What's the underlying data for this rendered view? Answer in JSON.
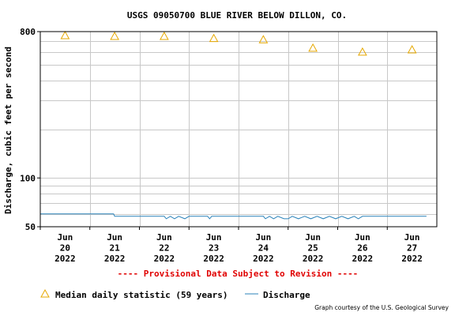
{
  "chart_data": {
    "type": "line",
    "title": "USGS 09050700 BLUE RIVER BELOW DILLON, CO.",
    "ylabel": "Discharge, cubic feet per second",
    "yscale": "log",
    "ylim": [
      50,
      800
    ],
    "y_ticks": [
      {
        "value": 800,
        "label": "800"
      },
      {
        "value": 100,
        "label": "100"
      },
      {
        "value": 50,
        "label": "50"
      }
    ],
    "xlim": [
      "2022-06-20T00:00",
      "2022-06-28T00:00"
    ],
    "x_ticks": [
      {
        "date": "2022-06-20",
        "month": "Jun",
        "day": "20",
        "year": "2022"
      },
      {
        "date": "2022-06-21",
        "month": "Jun",
        "day": "21",
        "year": "2022"
      },
      {
        "date": "2022-06-22",
        "month": "Jun",
        "day": "22",
        "year": "2022"
      },
      {
        "date": "2022-06-23",
        "month": "Jun",
        "day": "23",
        "year": "2022"
      },
      {
        "date": "2022-06-24",
        "month": "Jun",
        "day": "24",
        "year": "2022"
      },
      {
        "date": "2022-06-25",
        "month": "Jun",
        "day": "25",
        "year": "2022"
      },
      {
        "date": "2022-06-26",
        "month": "Jun",
        "day": "26",
        "year": "2022"
      },
      {
        "date": "2022-06-27",
        "month": "Jun",
        "day": "27",
        "year": "2022"
      }
    ],
    "grid": true,
    "legend_position": "bottom",
    "series": [
      {
        "name": "Median daily statistic (59 years)",
        "kind": "marker",
        "marker": "triangle",
        "color": "#e6a800",
        "points": [
          {
            "date": "2022-06-20T12:00",
            "value": 756
          },
          {
            "date": "2022-06-21T12:00",
            "value": 748
          },
          {
            "date": "2022-06-22T12:00",
            "value": 748
          },
          {
            "date": "2022-06-23T12:00",
            "value": 726
          },
          {
            "date": "2022-06-24T12:00",
            "value": 713
          },
          {
            "date": "2022-06-25T12:00",
            "value": 633
          },
          {
            "date": "2022-06-26T12:00",
            "value": 598
          },
          {
            "date": "2022-06-27T12:00",
            "value": 618
          }
        ]
      },
      {
        "name": "Discharge",
        "kind": "line",
        "color": "#2b83ba",
        "points": [
          {
            "date": "2022-06-20T00:00",
            "value": 60
          },
          {
            "date": "2022-06-21T11:30",
            "value": 60
          },
          {
            "date": "2022-06-21T12:00",
            "value": 58
          },
          {
            "date": "2022-06-22T12:00",
            "value": 58
          },
          {
            "date": "2022-06-22T13:00",
            "value": 56
          },
          {
            "date": "2022-06-22T15:00",
            "value": 58
          },
          {
            "date": "2022-06-22T17:00",
            "value": 56
          },
          {
            "date": "2022-06-22T19:00",
            "value": 58
          },
          {
            "date": "2022-06-22T22:00",
            "value": 56
          },
          {
            "date": "2022-06-23T00:00",
            "value": 58
          },
          {
            "date": "2022-06-23T09:00",
            "value": 58
          },
          {
            "date": "2022-06-23T10:00",
            "value": 56
          },
          {
            "date": "2022-06-23T11:00",
            "value": 58
          },
          {
            "date": "2022-06-24T12:00",
            "value": 58
          },
          {
            "date": "2022-06-24T13:00",
            "value": 56
          },
          {
            "date": "2022-06-24T15:00",
            "value": 58
          },
          {
            "date": "2022-06-24T17:00",
            "value": 56
          },
          {
            "date": "2022-06-24T19:00",
            "value": 58
          },
          {
            "date": "2022-06-24T22:00",
            "value": 56
          },
          {
            "date": "2022-06-25T00:00",
            "value": 56
          },
          {
            "date": "2022-06-25T02:00",
            "value": 58
          },
          {
            "date": "2022-06-25T05:00",
            "value": 56
          },
          {
            "date": "2022-06-25T08:00",
            "value": 58
          },
          {
            "date": "2022-06-25T11:00",
            "value": 56
          },
          {
            "date": "2022-06-25T14:00",
            "value": 58
          },
          {
            "date": "2022-06-25T17:00",
            "value": 56
          },
          {
            "date": "2022-06-25T20:00",
            "value": 58
          },
          {
            "date": "2022-06-25T23:00",
            "value": 56
          },
          {
            "date": "2022-06-26T02:00",
            "value": 58
          },
          {
            "date": "2022-06-26T05:00",
            "value": 56
          },
          {
            "date": "2022-06-26T08:00",
            "value": 58
          },
          {
            "date": "2022-06-26T10:00",
            "value": 56
          },
          {
            "date": "2022-06-26T12:00",
            "value": 58
          },
          {
            "date": "2022-06-27T19:00",
            "value": 58
          }
        ]
      }
    ],
    "annotations": [
      {
        "text": "---- Provisional Data Subject to Revision ----",
        "color": "#e00000"
      },
      {
        "text": "Graph courtesy of the U.S. Geological Survey"
      }
    ]
  }
}
